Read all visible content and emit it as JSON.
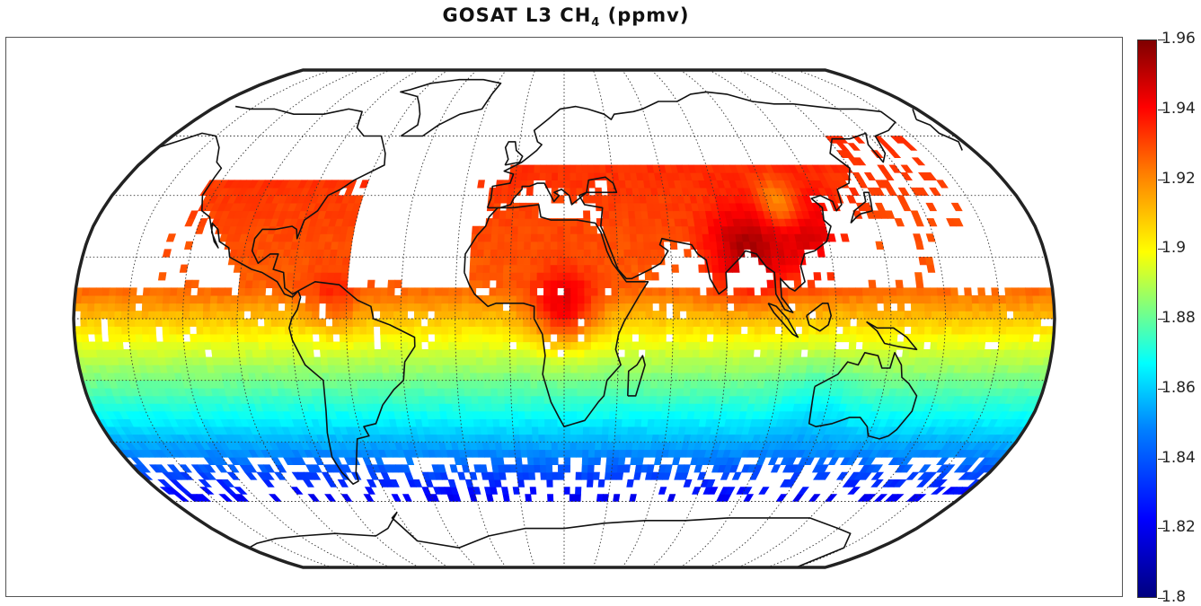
{
  "title": {
    "prefix": "GOSAT  L3  CH",
    "subscript": "4",
    "suffix": " (ppmv)"
  },
  "map": {
    "projection": "Robinson",
    "variable": "CH4 column-averaged mole fraction",
    "unit": "ppmv",
    "coverage_lat_range": [
      -60,
      60
    ]
  },
  "colorbar": {
    "min": 1.8,
    "max": 1.96,
    "colormap": "jet",
    "ticks": [
      "1.96",
      "1.94",
      "1.92",
      "1.9",
      "1.88",
      "1.86",
      "1.84",
      "1.82",
      "1.8"
    ]
  },
  "colors": {
    "low": "#00007f",
    "mid": "#ffff00",
    "high": "#7f0000"
  }
}
